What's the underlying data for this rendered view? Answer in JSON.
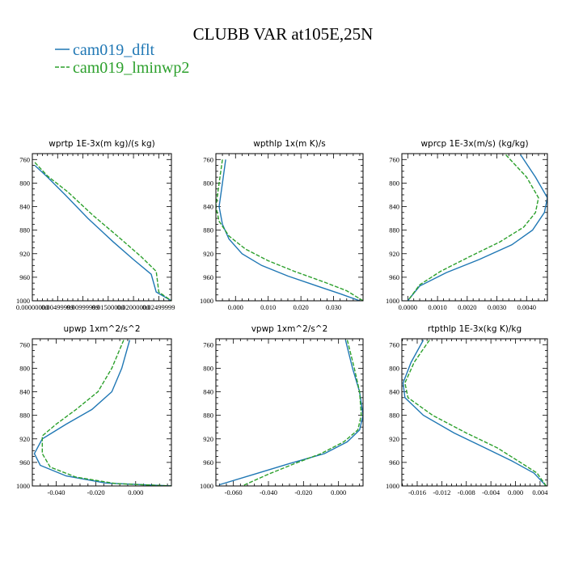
{
  "figure": {
    "title": "CLUBB VAR at105E,25N"
  },
  "legend": [
    {
      "label": "cam019_dflt",
      "color": "#1f77b4",
      "dash": "solid"
    },
    {
      "label": "cam019_lminwp2",
      "color": "#2ca02c",
      "dash": "dashed"
    }
  ],
  "chart_data": [
    {
      "type": "line",
      "title": "wprtp  1E-3x(m kg)/(s kg)",
      "xlim": [
        0.0,
        0.0275
      ],
      "ylim": [
        1000,
        750
      ],
      "xticks": [
        0.0,
        0.005,
        0.01,
        0.015,
        0.02,
        0.025
      ],
      "xtick_labels": [
        "0.00000000",
        "0.00499999",
        "0.00999999",
        "0.01500000",
        "0.02000000",
        "0.02499999"
      ],
      "yticks": [
        760,
        800,
        840,
        880,
        920,
        960,
        1000
      ],
      "series": [
        {
          "name": "cam019_dflt",
          "points": [
            [
              0.0005,
              770
            ],
            [
              0.003,
              790
            ],
            [
              0.0065,
              820
            ],
            [
              0.011,
              860
            ],
            [
              0.016,
              900
            ],
            [
              0.02,
              930
            ],
            [
              0.0235,
              955
            ],
            [
              0.0245,
              985
            ],
            [
              0.0275,
              1000
            ]
          ]
        },
        {
          "name": "cam019_lminwp2",
          "points": [
            [
              0.0005,
              765
            ],
            [
              0.003,
              788
            ],
            [
              0.007,
              815
            ],
            [
              0.012,
              855
            ],
            [
              0.0175,
              895
            ],
            [
              0.0215,
              925
            ],
            [
              0.0245,
              950
            ],
            [
              0.025,
              985
            ],
            [
              0.0275,
              1000
            ]
          ]
        }
      ]
    },
    {
      "type": "line",
      "title": "wpthlp  1x(m K)/s",
      "xlim": [
        -0.006,
        0.039
      ],
      "ylim": [
        1000,
        750
      ],
      "xticks": [
        0.0,
        0.01,
        0.02,
        0.03
      ],
      "xtick_labels": [
        "0.000",
        "0.010",
        "0.020",
        "0.030"
      ],
      "yticks": [
        760,
        800,
        840,
        880,
        920,
        960,
        1000
      ],
      "series": [
        {
          "name": "cam019_dflt",
          "points": [
            [
              -0.003,
              760
            ],
            [
              -0.004,
              800
            ],
            [
              -0.005,
              840
            ],
            [
              -0.004,
              870
            ],
            [
              -0.002,
              895
            ],
            [
              0.002,
              920
            ],
            [
              0.008,
              940
            ],
            [
              0.016,
              958
            ],
            [
              0.025,
              975
            ],
            [
              0.032,
              988
            ],
            [
              0.038,
              1000
            ]
          ]
        },
        {
          "name": "cam019_lminwp2",
          "points": [
            [
              -0.004,
              760
            ],
            [
              -0.005,
              800
            ],
            [
              -0.006,
              840
            ],
            [
              -0.005,
              865
            ],
            [
              -0.002,
              890
            ],
            [
              0.003,
              912
            ],
            [
              0.01,
              932
            ],
            [
              0.018,
              950
            ],
            [
              0.027,
              968
            ],
            [
              0.034,
              983
            ],
            [
              0.039,
              1000
            ]
          ]
        }
      ]
    },
    {
      "type": "line",
      "title": "wprcp  1E-3x(m/s) (kg/kg)",
      "xlim": [
        -0.0002,
        0.0047
      ],
      "ylim": [
        1000,
        750
      ],
      "xticks": [
        0.0,
        0.001,
        0.002,
        0.003,
        0.004
      ],
      "xtick_labels": [
        "0.0000",
        "0.0010",
        "0.0020",
        "0.0030",
        "0.0040"
      ],
      "yticks": [
        760,
        800,
        840,
        880,
        920,
        960,
        1000
      ],
      "series": [
        {
          "name": "cam019_dflt",
          "points": [
            [
              0.0038,
              752
            ],
            [
              0.0043,
              790
            ],
            [
              0.0047,
              825
            ],
            [
              0.0046,
              850
            ],
            [
              0.0042,
              880
            ],
            [
              0.0035,
              905
            ],
            [
              0.0024,
              930
            ],
            [
              0.0013,
              952
            ],
            [
              0.0004,
              975
            ],
            [
              0.0,
              1000
            ]
          ]
        },
        {
          "name": "cam019_lminwp2",
          "points": [
            [
              0.0033,
              752
            ],
            [
              0.004,
              790
            ],
            [
              0.0044,
              825
            ],
            [
              0.0043,
              850
            ],
            [
              0.0039,
              875
            ],
            [
              0.0031,
              900
            ],
            [
              0.002,
              927
            ],
            [
              0.0011,
              950
            ],
            [
              0.0004,
              973
            ],
            [
              0.0,
              1000
            ]
          ]
        }
      ]
    },
    {
      "type": "line",
      "title": "upwp  1xm^2/s^2",
      "xlim": [
        -0.052,
        0.018
      ],
      "ylim": [
        1000,
        750
      ],
      "xticks": [
        -0.04,
        -0.02,
        0.0
      ],
      "xtick_labels": [
        "-0.040",
        "-0.020",
        "0.000"
      ],
      "yticks": [
        760,
        800,
        840,
        880,
        920,
        960,
        1000
      ],
      "series": [
        {
          "name": "cam019_dflt",
          "points": [
            [
              -0.003,
              752
            ],
            [
              -0.007,
              800
            ],
            [
              -0.012,
              840
            ],
            [
              -0.022,
              870
            ],
            [
              -0.035,
              895
            ],
            [
              -0.047,
              920
            ],
            [
              -0.051,
              945
            ],
            [
              -0.048,
              965
            ],
            [
              -0.035,
              983
            ],
            [
              -0.015,
              995
            ],
            [
              0.018,
              1000
            ]
          ]
        },
        {
          "name": "cam019_lminwp2",
          "points": [
            [
              -0.006,
              752
            ],
            [
              -0.012,
              800
            ],
            [
              -0.019,
              840
            ],
            [
              -0.03,
              870
            ],
            [
              -0.04,
              895
            ],
            [
              -0.047,
              915
            ],
            [
              -0.047,
              945
            ],
            [
              -0.043,
              968
            ],
            [
              -0.03,
              985
            ],
            [
              -0.01,
              996
            ],
            [
              0.018,
              1000
            ]
          ]
        }
      ]
    },
    {
      "type": "line",
      "title": "vpwp  1xm^2/s^2",
      "xlim": [
        -0.07,
        0.014
      ],
      "ylim": [
        1000,
        750
      ],
      "xticks": [
        -0.06,
        -0.04,
        -0.02,
        0.0
      ],
      "xtick_labels": [
        "-0.060",
        "-0.040",
        "-0.020",
        "0.000"
      ],
      "yticks": [
        760,
        800,
        840,
        880,
        920,
        960,
        1000
      ],
      "series": [
        {
          "name": "cam019_dflt",
          "points": [
            [
              0.004,
              752
            ],
            [
              0.008,
              800
            ],
            [
              0.012,
              840
            ],
            [
              0.014,
              880
            ],
            [
              0.012,
              905
            ],
            [
              0.005,
              925
            ],
            [
              -0.008,
              945
            ],
            [
              -0.028,
              962
            ],
            [
              -0.048,
              980
            ],
            [
              -0.068,
              998
            ]
          ]
        },
        {
          "name": "cam019_lminwp2",
          "points": [
            [
              0.005,
              752
            ],
            [
              0.009,
              800
            ],
            [
              0.012,
              840
            ],
            [
              0.013,
              880
            ],
            [
              0.011,
              905
            ],
            [
              0.003,
              925
            ],
            [
              -0.01,
              945
            ],
            [
              -0.025,
              962
            ],
            [
              -0.04,
              980
            ],
            [
              -0.055,
              1000
            ]
          ]
        }
      ]
    },
    {
      "type": "line",
      "title": "rtpthlp  1E-3x(kg K)/kg",
      "xlim": [
        -0.0185,
        0.0052
      ],
      "ylim": [
        1000,
        750
      ],
      "xticks": [
        -0.016,
        -0.012,
        -0.008,
        -0.004,
        0.0,
        0.004
      ],
      "xtick_labels": [
        "-0.016",
        "-0.012",
        "-0.008",
        "-0.004",
        "0.000",
        "0.004"
      ],
      "yticks": [
        760,
        800,
        840,
        880,
        920,
        960,
        1000
      ],
      "series": [
        {
          "name": "cam019_dflt",
          "points": [
            [
              -0.015,
              752
            ],
            [
              -0.017,
              790
            ],
            [
              -0.0183,
              825
            ],
            [
              -0.018,
              850
            ],
            [
              -0.015,
              880
            ],
            [
              -0.01,
              910
            ],
            [
              -0.005,
              935
            ],
            [
              -0.0005,
              958
            ],
            [
              0.003,
              978
            ],
            [
              0.005,
              1000
            ]
          ]
        },
        {
          "name": "cam019_lminwp2",
          "points": [
            [
              -0.014,
              752
            ],
            [
              -0.0165,
              790
            ],
            [
              -0.018,
              825
            ],
            [
              -0.0175,
              850
            ],
            [
              -0.0135,
              880
            ],
            [
              -0.008,
              910
            ],
            [
              -0.003,
              935
            ],
            [
              0.0005,
              958
            ],
            [
              0.0035,
              978
            ],
            [
              0.005,
              1000
            ]
          ]
        }
      ]
    }
  ]
}
